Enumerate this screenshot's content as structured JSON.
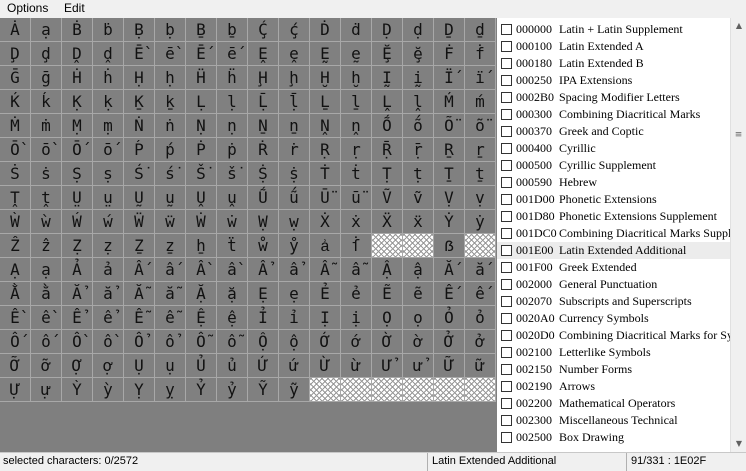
{
  "menu": {
    "options": "Options",
    "edit": "Edit"
  },
  "grid": {
    "rows": [
      [
        "Ȧ",
        "ạ",
        "Ḃ",
        "ḃ",
        "Ḅ",
        "ḅ",
        "Ḇ",
        "ḇ",
        "Ḉ",
        "ḉ",
        "Ḋ",
        "ḋ",
        "Ḍ",
        "ḍ",
        "Ḏ",
        "ḏ"
      ],
      [
        "Ḑ",
        "ḑ",
        "Ḓ",
        "ḓ",
        "Ḕ",
        "ḕ",
        "Ḗ",
        "ḗ",
        "Ḙ",
        "ḙ",
        "Ḛ",
        "ḛ",
        "Ḝ",
        "ḝ",
        "Ḟ",
        "ḟ"
      ],
      [
        "Ḡ",
        "ḡ",
        "Ḣ",
        "ḣ",
        "Ḥ",
        "ḥ",
        "Ḧ",
        "ḧ",
        "Ḩ",
        "ḩ",
        "Ḫ",
        "ḫ",
        "Ḭ",
        "ḭ",
        "Ḯ",
        "ḯ"
      ],
      [
        "Ḱ",
        "ḱ",
        "Ḳ",
        "ḳ",
        "Ḵ",
        "ḵ",
        "Ḷ",
        "ḷ",
        "Ḹ",
        "ḹ",
        "Ḻ",
        "ḻ",
        "Ḽ",
        "ḽ",
        "Ḿ",
        "ḿ"
      ],
      [
        "Ṁ",
        "ṁ",
        "Ṃ",
        "ṃ",
        "Ṅ",
        "ṅ",
        "Ṇ",
        "ṇ",
        "Ṉ",
        "ṉ",
        "Ṋ",
        "ṋ",
        "Ṍ",
        "ṍ",
        "Ṏ",
        "ṏ"
      ],
      [
        "Ṑ",
        "ṑ",
        "Ṓ",
        "ṓ",
        "Ṕ",
        "ṕ",
        "Ṗ",
        "ṗ",
        "Ṙ",
        "ṙ",
        "Ṛ",
        "ṛ",
        "Ṝ",
        "ṝ",
        "Ṟ",
        "ṟ"
      ],
      [
        "Ṡ",
        "ṡ",
        "Ṣ",
        "ṣ",
        "Ṥ",
        "ṥ",
        "Ṧ",
        "ṧ",
        "Ṩ",
        "ṩ",
        "Ṫ",
        "ṫ",
        "Ṭ",
        "ṭ",
        "Ṯ",
        "ṯ"
      ],
      [
        "Ṱ",
        "ṱ",
        "Ṳ",
        "ṳ",
        "Ṵ",
        "ṵ",
        "Ṷ",
        "ṷ",
        "Ṹ",
        "ṹ",
        "Ṻ",
        "ṻ",
        "Ṽ",
        "ṽ",
        "Ṿ",
        "ṿ"
      ],
      [
        "Ẁ",
        "ẁ",
        "Ẃ",
        "ẃ",
        "Ẅ",
        "ẅ",
        "Ẇ",
        "ẇ",
        "Ẉ",
        "ẉ",
        "Ẋ",
        "ẋ",
        "Ẍ",
        "ẍ",
        "Ẏ",
        "ẏ"
      ],
      [
        "Ẑ",
        "ẑ",
        "Ẓ",
        "ẓ",
        "Ẕ",
        "ẕ",
        "ẖ",
        "ẗ",
        "ẘ",
        "ẙ",
        "ẚ",
        "ẛ",
        "",
        "",
        "ẞ",
        ""
      ],
      [
        "Ạ",
        "ạ",
        "Ả",
        "ả",
        "Ấ",
        "ấ",
        "Ầ",
        "ầ",
        "Ẩ",
        "ẩ",
        "Ẫ",
        "ẫ",
        "Ậ",
        "ậ",
        "Ắ",
        "ắ"
      ],
      [
        "Ằ",
        "ằ",
        "Ẳ",
        "ẳ",
        "Ẵ",
        "ẵ",
        "Ặ",
        "ặ",
        "Ẹ",
        "ẹ",
        "Ẻ",
        "ẻ",
        "Ẽ",
        "ẽ",
        "Ế",
        "ế"
      ],
      [
        "Ề",
        "ề",
        "Ể",
        "ể",
        "Ễ",
        "ễ",
        "Ệ",
        "ệ",
        "Ỉ",
        "ỉ",
        "Ị",
        "ị",
        "Ọ",
        "ọ",
        "Ỏ",
        "ỏ"
      ],
      [
        "Ố",
        "ố",
        "Ồ",
        "ồ",
        "Ổ",
        "ổ",
        "Ỗ",
        "ỗ",
        "Ộ",
        "ộ",
        "Ớ",
        "ớ",
        "Ờ",
        "ờ",
        "Ở",
        "ở"
      ],
      [
        "Ỡ",
        "ỡ",
        "Ợ",
        "ợ",
        "Ụ",
        "ụ",
        "Ủ",
        "ủ",
        "Ứ",
        "ứ",
        "Ừ",
        "ừ",
        "Ử",
        "ử",
        "Ữ",
        "ữ"
      ],
      [
        "Ự",
        "ự",
        "Ỳ",
        "ỳ",
        "Ỵ",
        "ỵ",
        "Ỷ",
        "ỷ",
        "Ỹ",
        "ỹ",
        "",
        "",
        "",
        "",
        "",
        ""
      ]
    ]
  },
  "blocks": {
    "selected_index": 13,
    "items": [
      {
        "code": "000000",
        "name": "Latin + Latin Supplement"
      },
      {
        "code": "000100",
        "name": "Latin Extended A"
      },
      {
        "code": "000180",
        "name": "Latin Extended B"
      },
      {
        "code": "000250",
        "name": "IPA Extensions"
      },
      {
        "code": "0002B0",
        "name": "Spacing Modifier Letters"
      },
      {
        "code": "000300",
        "name": "Combining Diacritical Marks"
      },
      {
        "code": "000370",
        "name": "Greek and Coptic"
      },
      {
        "code": "000400",
        "name": "Cyrillic"
      },
      {
        "code": "000500",
        "name": "Cyrillic Supplement"
      },
      {
        "code": "000590",
        "name": "Hebrew"
      },
      {
        "code": "001D00",
        "name": "Phonetic Extensions"
      },
      {
        "code": "001D80",
        "name": "Phonetic Extensions Supplement"
      },
      {
        "code": "001DC0",
        "name": "Combining Diacritical Marks Supplement"
      },
      {
        "code": "001E00",
        "name": "Latin Extended Additional"
      },
      {
        "code": "001F00",
        "name": "Greek Extended"
      },
      {
        "code": "002000",
        "name": "General Punctuation"
      },
      {
        "code": "002070",
        "name": "Subscripts and Superscripts"
      },
      {
        "code": "0020A0",
        "name": "Currency Symbols"
      },
      {
        "code": "0020D0",
        "name": "Combining Diacritical Marks for Symbols"
      },
      {
        "code": "002100",
        "name": "Letterlike Symbols"
      },
      {
        "code": "002150",
        "name": "Number Forms"
      },
      {
        "code": "002190",
        "name": "Arrows"
      },
      {
        "code": "002200",
        "name": "Mathematical Operators"
      },
      {
        "code": "002300",
        "name": "Miscellaneous Technical"
      },
      {
        "code": "002500",
        "name": "Box Drawing"
      }
    ]
  },
  "scrollbar": {
    "up_icon": "▲",
    "down_icon": "▼",
    "grip_icon": "≡"
  },
  "status": {
    "selected": "selected characters: 0/2572",
    "block": "Latin Extended Additional",
    "position": "91/331 : 1E02F"
  }
}
